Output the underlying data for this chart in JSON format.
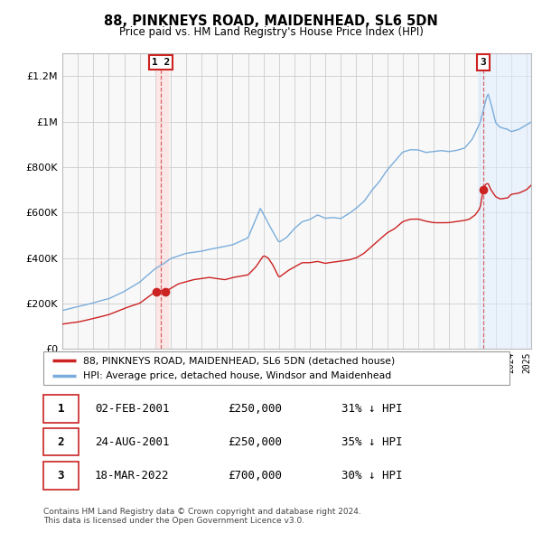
{
  "title": "88, PINKNEYS ROAD, MAIDENHEAD, SL6 5DN",
  "subtitle": "Price paid vs. HM Land Registry's House Price Index (HPI)",
  "ylim": [
    0,
    1300000
  ],
  "yticks": [
    0,
    200000,
    400000,
    600000,
    800000,
    1000000,
    1200000
  ],
  "ytick_labels": [
    "£0",
    "£200K",
    "£400K",
    "£600K",
    "£800K",
    "£1M",
    "£1.2M"
  ],
  "hpi_color": "#7aaddb",
  "price_color": "#cc2222",
  "marker_color": "#cc2222",
  "background_color": "#f8f8f8",
  "grid_color": "#cccccc",
  "legend_label_price": "88, PINKNEYS ROAD, MAIDENHEAD, SL6 5DN (detached house)",
  "legend_label_hpi": "HPI: Average price, detached house, Windsor and Maidenhead",
  "row1_num": "1",
  "row1_date": "02-FEB-2001",
  "row1_price": "£250,000",
  "row1_hpi": "31% ↓ HPI",
  "row2_num": "2",
  "row2_date": "24-AUG-2001",
  "row2_price": "£250,000",
  "row2_hpi": "35% ↓ HPI",
  "row3_num": "3",
  "row3_date": "18-MAR-2022",
  "row3_price": "£700,000",
  "row3_hpi": "30% ↓ HPI",
  "footnote1": "Contains HM Land Registry data © Crown copyright and database right 2024.",
  "footnote2": "This data is licensed under the Open Government Licence v3.0.",
  "sale1_year": 2001.08,
  "sale1_value": 250000,
  "sale2_year": 2001.64,
  "sale2_value": 250000,
  "sale3_year": 2022.21,
  "sale3_value": 700000,
  "vline1_year": 2001.35,
  "vline2_year": 2022.21,
  "shade1_start": 2001.08,
  "shade1_end": 2001.85,
  "shade2_start": 2021.85,
  "shade2_end": 2025.3,
  "xlim_start": 1995.0,
  "xlim_end": 2025.3
}
